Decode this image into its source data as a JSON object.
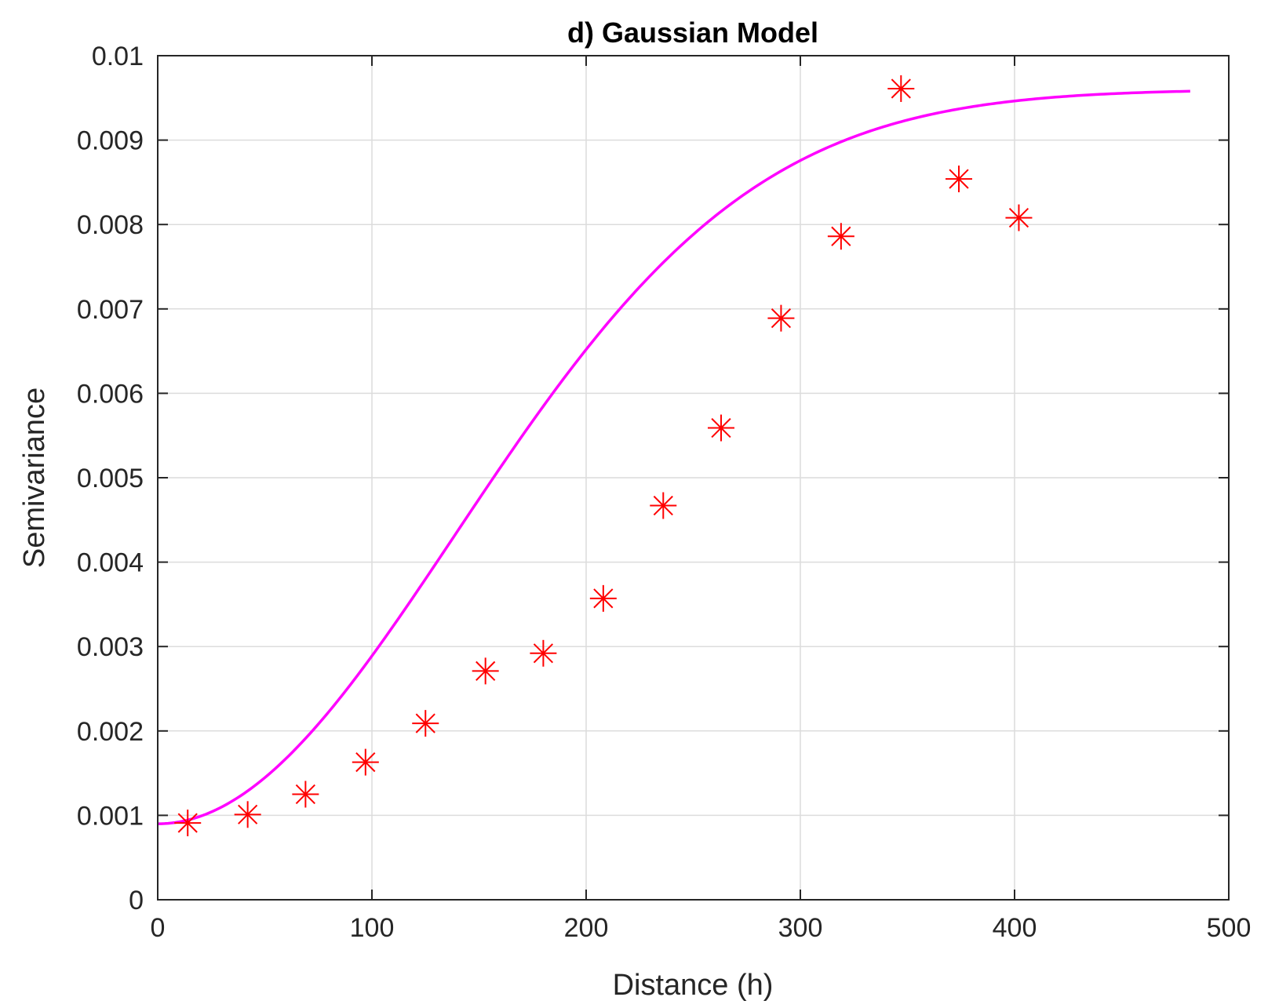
{
  "chart_data": {
    "type": "scatter",
    "title": "d) Gaussian Model",
    "xlabel": "Distance (h)",
    "ylabel": "Semivariance",
    "xlim": [
      0,
      500
    ],
    "ylim": [
      0,
      0.01
    ],
    "xticks": [
      "0",
      "100",
      "200",
      "300",
      "400",
      "500"
    ],
    "yticks": [
      "0",
      "0.001",
      "0.002",
      "0.003",
      "0.004",
      "0.005",
      "0.006",
      "0.007",
      "0.008",
      "0.009",
      "0.01"
    ],
    "grid": true,
    "series": [
      {
        "kind": "scatter",
        "marker": "asterisk",
        "color": "#ff0000",
        "x": [
          14,
          42,
          69,
          97,
          125,
          153,
          180,
          208,
          236,
          263,
          291,
          319,
          347,
          374,
          402
        ],
        "y": [
          0.00091,
          0.00101,
          0.00125,
          0.00163,
          0.00209,
          0.00271,
          0.00292,
          0.00357,
          0.00467,
          0.00559,
          0.00689,
          0.00786,
          0.00961,
          0.00854,
          0.00808
        ]
      },
      {
        "kind": "line",
        "color": "#ff00ff",
        "model": "gaussian",
        "nugget": 0.0009,
        "sill": 0.0096,
        "range": 340,
        "x_range": [
          0,
          482
        ]
      }
    ]
  }
}
